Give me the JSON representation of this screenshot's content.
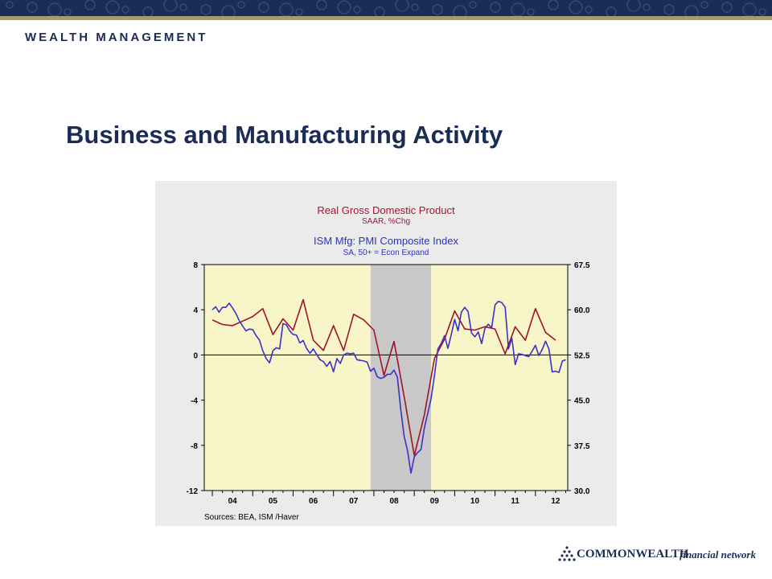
{
  "header": {
    "brand": "WEALTH MANAGEMENT"
  },
  "slide": {
    "title": "Business and Manufacturing Activity"
  },
  "footer": {
    "logo_word": "COMMONWEALTH",
    "logo_sub": "financial network"
  },
  "colors": {
    "navy": "#1b2d55",
    "gdp_line": "#a01228",
    "pmi_line": "#3d30c8",
    "recession": "#c8c8c8",
    "plot_bg": "#f8f6c9"
  },
  "chart_data": {
    "type": "line",
    "title": "Real Gross Domestic Product",
    "subtitle": "SAAR, %Chg",
    "title2": "ISM Mfg: PMI Composite Index",
    "subtitle2": "SA, 50+ = Econ Expand",
    "source": "Sources:  BEA, ISM /Haver",
    "x_range": [
      2003.8,
      2012.8
    ],
    "left_axis": {
      "ticks": [
        "8",
        "4",
        "0",
        "-4",
        "-8",
        "-12"
      ],
      "ylim": [
        -12,
        8
      ]
    },
    "right_axis": {
      "ticks": [
        "67.5",
        "60.0",
        "52.5",
        "45.0",
        "37.5",
        "30.0"
      ],
      "ylim": [
        30,
        67.5
      ]
    },
    "x_ticks": [
      "04",
      "05",
      "06",
      "07",
      "08",
      "09",
      "10",
      "11",
      "12"
    ],
    "recession_band": [
      2007.9167,
      2009.4167
    ],
    "grid": false,
    "series": [
      {
        "name": "Real Gross Domestic Product",
        "axis": "left",
        "color": "#a01228",
        "x": [
          2004.0,
          2004.25,
          2004.5,
          2004.75,
          2005.0,
          2005.25,
          2005.5,
          2005.75,
          2006.0,
          2006.25,
          2006.5,
          2006.75,
          2007.0,
          2007.25,
          2007.5,
          2007.75,
          2008.0,
          2008.25,
          2008.5,
          2008.75,
          2009.0,
          2009.25,
          2009.5,
          2009.75,
          2010.0,
          2010.25,
          2010.5,
          2010.75,
          2011.0,
          2011.25,
          2011.5,
          2011.75,
          2012.0,
          2012.25,
          2012.5
        ],
        "values": [
          3.1,
          2.7,
          2.6,
          3.0,
          3.4,
          4.1,
          1.8,
          3.2,
          2.2,
          4.9,
          1.3,
          0.4,
          2.6,
          0.4,
          3.6,
          3.1,
          2.2,
          -1.8,
          1.2,
          -3.7,
          -8.9,
          -5.3,
          -0.3,
          1.4,
          3.9,
          2.3,
          2.2,
          2.5,
          2.3,
          0.1,
          2.5,
          1.3,
          4.1,
          2.0,
          1.3
        ]
      },
      {
        "name": "ISM Mfg: PMI Composite Index",
        "axis": "right",
        "color": "#3d30c8",
        "x": [
          2004.0,
          2004.0833,
          2004.1667,
          2004.25,
          2004.3333,
          2004.4167,
          2004.5,
          2004.5833,
          2004.6667,
          2004.75,
          2004.8333,
          2004.9167,
          2005.0,
          2005.0833,
          2005.1667,
          2005.25,
          2005.3333,
          2005.4167,
          2005.5,
          2005.5833,
          2005.6667,
          2005.75,
          2005.8333,
          2005.9167,
          2006.0,
          2006.0833,
          2006.1667,
          2006.25,
          2006.3333,
          2006.4167,
          2006.5,
          2006.5833,
          2006.6667,
          2006.75,
          2006.8333,
          2006.9167,
          2007.0,
          2007.0833,
          2007.1667,
          2007.25,
          2007.3333,
          2007.4167,
          2007.5,
          2007.5833,
          2007.6667,
          2007.75,
          2007.8333,
          2007.9167,
          2008.0,
          2008.0833,
          2008.1667,
          2008.25,
          2008.3333,
          2008.4167,
          2008.5,
          2008.5833,
          2008.6667,
          2008.75,
          2008.8333,
          2008.9167,
          2009.0,
          2009.0833,
          2009.1667,
          2009.25,
          2009.3333,
          2009.4167,
          2009.5,
          2009.5833,
          2009.6667,
          2009.75,
          2009.8333,
          2009.9167,
          2010.0,
          2010.0833,
          2010.1667,
          2010.25,
          2010.3333,
          2010.4167,
          2010.5,
          2010.5833,
          2010.6667,
          2010.75,
          2010.8333,
          2010.9167,
          2011.0,
          2011.0833,
          2011.1667,
          2011.25,
          2011.3333,
          2011.4167,
          2011.5,
          2011.5833,
          2011.6667,
          2011.75,
          2011.8333,
          2011.9167,
          2012.0,
          2012.0833,
          2012.1667,
          2012.25,
          2012.3333,
          2012.4167,
          2012.5,
          2012.5833,
          2012.6667,
          2012.75
        ],
        "values": [
          60.0,
          60.5,
          59.6,
          60.4,
          60.4,
          61.1,
          60.3,
          59.4,
          58.2,
          57.3,
          56.5,
          56.8,
          56.7,
          55.7,
          55.0,
          53.2,
          51.9,
          51.2,
          53.2,
          53.7,
          53.5,
          57.7,
          57.5,
          56.5,
          55.9,
          55.8,
          54.5,
          54.9,
          53.6,
          52.8,
          53.5,
          52.6,
          51.7,
          51.4,
          50.6,
          51.4,
          49.7,
          51.9,
          51.1,
          52.5,
          52.8,
          52.7,
          52.8,
          51.7,
          51.6,
          51.5,
          51.3,
          49.8,
          50.3,
          48.9,
          48.6,
          48.8,
          49.3,
          49.3,
          50.0,
          48.8,
          43.4,
          39.0,
          36.6,
          32.9,
          35.6,
          36.3,
          36.8,
          40.4,
          42.8,
          45.3,
          49.1,
          53.5,
          54.4,
          55.7,
          53.6,
          55.9,
          58.4,
          56.5,
          59.6,
          60.4,
          59.7,
          56.2,
          55.5,
          56.3,
          54.4,
          56.9,
          57.6,
          57.0,
          60.8,
          61.4,
          61.2,
          60.4,
          53.5,
          55.3,
          50.9,
          52.7,
          52.6,
          52.4,
          52.2,
          53.1,
          54.1,
          52.4,
          53.4,
          54.8,
          53.5,
          49.7,
          49.8,
          49.6,
          51.5,
          51.7
        ]
      }
    ]
  }
}
